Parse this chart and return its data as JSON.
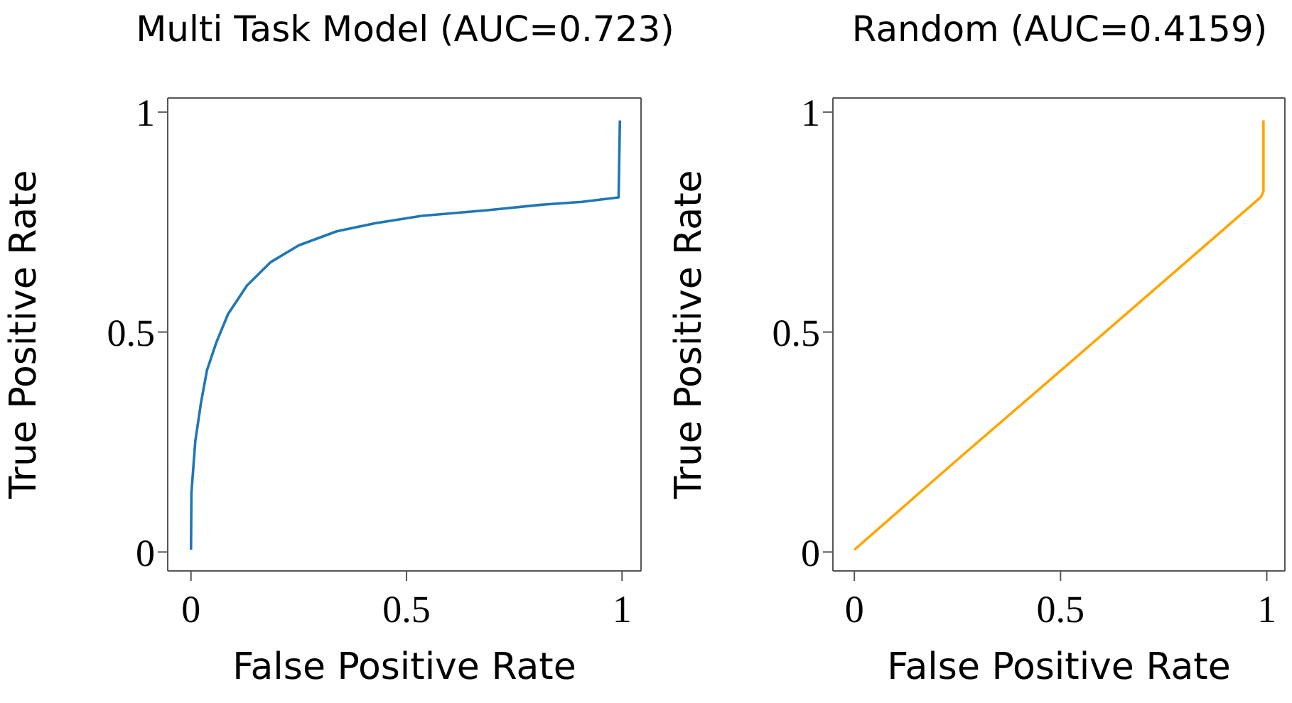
{
  "chart_data": [
    {
      "type": "line",
      "title": "Multi Task Model (AUC=0.723)",
      "xlabel": "False Positive Rate",
      "ylabel": "True Positive Rate",
      "xlim": [
        -0.054,
        1.044
      ],
      "ylim": [
        -0.043,
        1.032
      ],
      "xticks": [
        0,
        0.5,
        1
      ],
      "yticks": [
        0,
        0.5,
        1
      ],
      "grid": false,
      "marker": "none",
      "series": [
        {
          "color": "#1f77b4",
          "x": [
            0,
            0.001,
            0.01,
            0.023,
            0.037,
            0.059,
            0.086,
            0.13,
            0.185,
            0.25,
            0.338,
            0.426,
            0.535,
            0.688,
            0.82,
            0.907,
            0.992,
            0.995
          ],
          "values": [
            0.005,
            0.134,
            0.252,
            0.338,
            0.413,
            0.477,
            0.541,
            0.606,
            0.659,
            0.697,
            0.729,
            0.747,
            0.764,
            0.777,
            0.79,
            0.796,
            0.806,
            0.981
          ]
        }
      ]
    },
    {
      "type": "line",
      "title": "Random (AUC=0.4159)",
      "xlabel": "False Positive Rate",
      "ylabel": "True Positive Rate",
      "xlim": [
        -0.052,
        1.044
      ],
      "ylim": [
        -0.043,
        1.032
      ],
      "xticks": [
        0,
        0.5,
        1
      ],
      "yticks": [
        0,
        0.5,
        1
      ],
      "grid": false,
      "marker": "none",
      "series": [
        {
          "color": "#ffa500",
          "x": [
            0,
            0.25,
            0.5,
            0.75,
            0.986,
            0.992,
            0.992
          ],
          "values": [
            0.005,
            0.21,
            0.412,
            0.615,
            0.807,
            0.82,
            0.981
          ]
        }
      ]
    }
  ]
}
